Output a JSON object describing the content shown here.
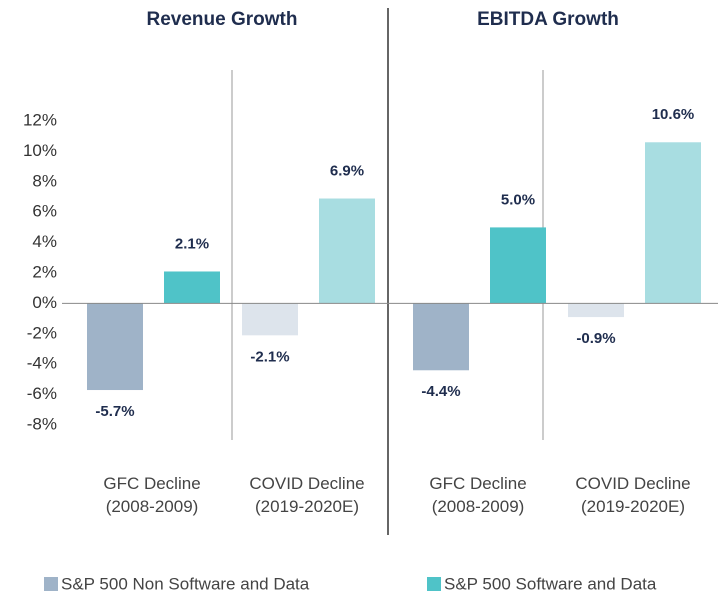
{
  "chart_data": {
    "type": "bar",
    "categories": [
      "GFC Decline (2008-2009)",
      "COVID Decline (2019-2020E)"
    ],
    "series": [
      {
        "name": "S&P 500 Non Software and Data",
        "colors": [
          "#9fb3c8",
          "#dde4ec"
        ]
      },
      {
        "name": "S&P 500 Software and Data",
        "colors": [
          "#4fc3c8",
          "#a8dde1"
        ]
      }
    ],
    "panels": [
      {
        "title": "Revenue Growth",
        "series": [
          {
            "values": [
              -5.7,
              -2.1
            ],
            "value_labels": [
              "-5.7%",
              "-2.1%"
            ]
          },
          {
            "values": [
              2.1,
              6.9
            ],
            "value_labels": [
              "2.1%",
              "6.9%"
            ]
          }
        ]
      },
      {
        "title": "EBITDA Growth",
        "series": [
          {
            "values": [
              -4.4,
              -0.9
            ],
            "value_labels": [
              "-4.4%",
              "-0.9%"
            ]
          },
          {
            "values": [
              5.0,
              10.6
            ],
            "value_labels": [
              "5.0%",
              "10.6%"
            ]
          }
        ]
      }
    ],
    "ylim": [
      -8,
      12
    ],
    "yticks": [
      {
        "value": -8,
        "label": "-8%"
      },
      {
        "value": -6,
        "label": "-6%"
      },
      {
        "value": -4,
        "label": "-4%"
      },
      {
        "value": -2,
        "label": "-2%"
      },
      {
        "value": 0,
        "label": "0%"
      },
      {
        "value": 2,
        "label": "2%"
      },
      {
        "value": 4,
        "label": "4%"
      },
      {
        "value": 6,
        "label": "6%"
      },
      {
        "value": 8,
        "label": "8%"
      },
      {
        "value": 10,
        "label": "10%"
      },
      {
        "value": 12,
        "label": "12%"
      }
    ]
  }
}
